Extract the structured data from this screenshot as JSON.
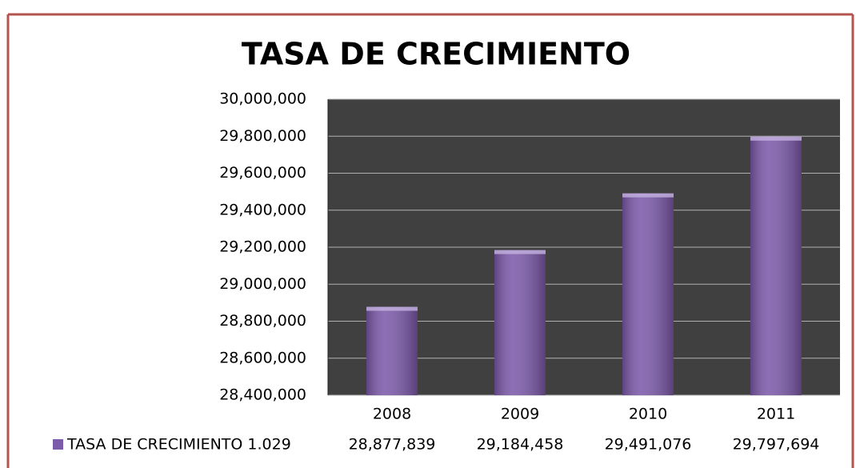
{
  "chart_data": {
    "type": "bar",
    "title": "TASA DE CRECIMIENTO",
    "categories": [
      "2008",
      "2009",
      "2010",
      "2011"
    ],
    "series": [
      {
        "name": "TASA DE CRECIMIENTO 1.029",
        "color": "#7d5bab",
        "values": [
          28877839,
          29184458,
          29491076,
          29797694
        ],
        "value_labels": [
          "28,877,839",
          "29,184,458",
          "29,491,076",
          "29,797,694"
        ]
      }
    ],
    "ylim": [
      28400000,
      30000000
    ],
    "yticks": [
      {
        "value": 28400000,
        "label": "28,400,000"
      },
      {
        "value": 28600000,
        "label": "28,600,000"
      },
      {
        "value": 28800000,
        "label": "28,800,000"
      },
      {
        "value": 29000000,
        "label": "29,000,000"
      },
      {
        "value": 29200000,
        "label": "29,200,000"
      },
      {
        "value": 29400000,
        "label": "29,400,000"
      },
      {
        "value": 29600000,
        "label": "29,600,000"
      },
      {
        "value": 29800000,
        "label": "29,800,000"
      },
      {
        "value": 30000000,
        "label": "30,000,000"
      }
    ],
    "grid": true,
    "plot_background": "#404040",
    "data_table": true
  }
}
